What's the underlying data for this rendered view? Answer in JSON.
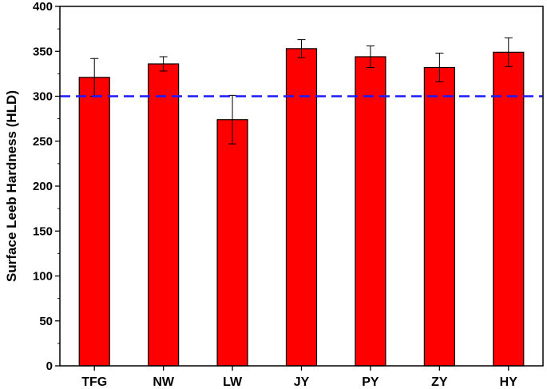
{
  "chart_data": {
    "type": "bar",
    "categories": [
      "TFG",
      "NW",
      "LW",
      "JY",
      "PY",
      "ZY",
      "HY"
    ],
    "values": [
      321,
      336,
      274,
      353,
      344,
      332,
      349
    ],
    "errors": [
      21,
      8,
      27,
      10,
      12,
      16,
      16
    ],
    "ylabel": "Surface Leeb Hardness (HLD)",
    "xlabel": "",
    "ylim": [
      0,
      400
    ],
    "yticks": [
      0,
      50,
      100,
      150,
      200,
      250,
      300,
      350,
      400
    ],
    "reference_line": {
      "value": 300,
      "style": "dashed",
      "color": "#1a1aff"
    },
    "bar_color": "#ff0000",
    "grid": false,
    "legend": "none"
  }
}
